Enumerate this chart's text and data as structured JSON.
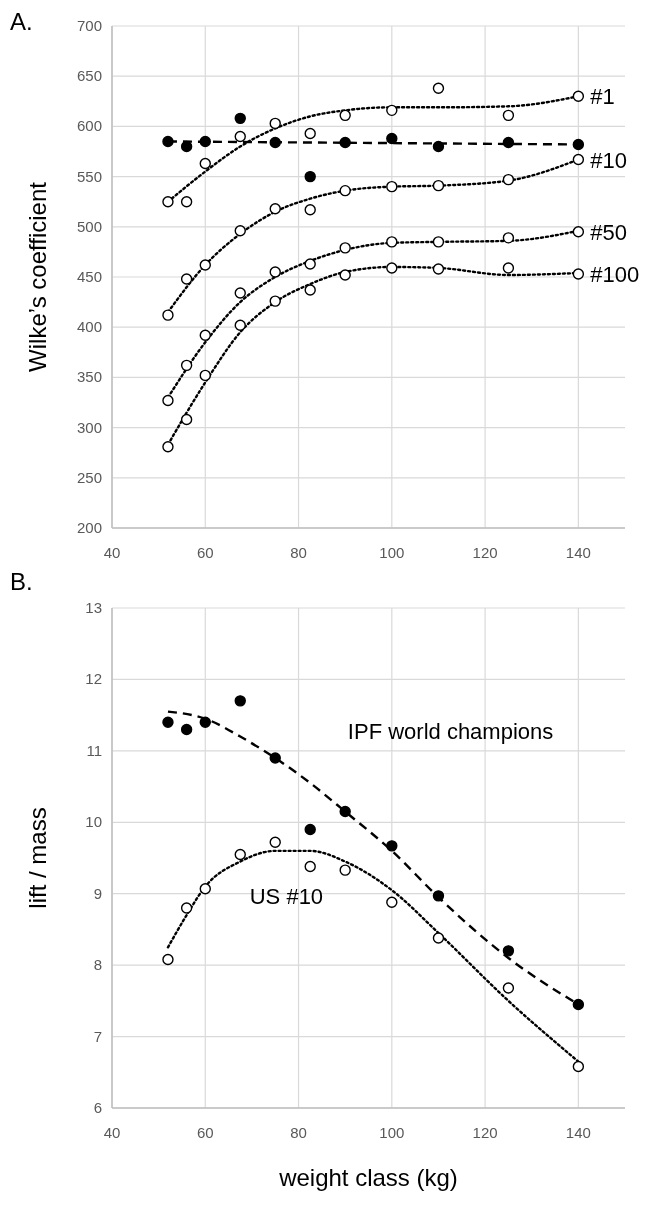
{
  "chart_data": [
    {
      "type": "scatter",
      "title": "A.",
      "ylabel": "Wilke’s coefficient",
      "xlim": [
        40,
        150
      ],
      "xticks": [
        40,
        60,
        80,
        100,
        120,
        140
      ],
      "ylim": [
        200,
        700
      ],
      "yticks": [
        200,
        250,
        300,
        350,
        400,
        450,
        500,
        550,
        600,
        650,
        700
      ],
      "grid": true,
      "x": [
        52,
        56,
        60,
        67.5,
        75,
        82.5,
        90,
        100,
        110,
        125,
        140
      ],
      "series": [
        {
          "type": "line",
          "color": "#000000",
          "marker": "none",
          "line_style": "dashed",
          "x": [
            52,
            140
          ],
          "values": [
            585,
            582
          ]
        },
        {
          "type": "line",
          "color": "#000000",
          "marker": "none",
          "line_style": "dotted",
          "x": [
            52,
            60,
            67.5,
            75,
            82.5,
            90,
            100,
            110,
            125,
            140
          ],
          "values": [
            525,
            555,
            580,
            598,
            610,
            616,
            619,
            619,
            620,
            630
          ]
        },
        {
          "type": "line",
          "color": "#000000",
          "marker": "none",
          "line_style": "dotted",
          "x": [
            52,
            60,
            67.5,
            75,
            82.5,
            90,
            100,
            110,
            125,
            140
          ],
          "values": [
            415,
            462,
            493,
            515,
            528,
            536,
            540,
            541,
            546,
            567
          ]
        },
        {
          "type": "line",
          "color": "#000000",
          "marker": "none",
          "line_style": "dotted",
          "x": [
            52,
            60,
            67.5,
            75,
            82.5,
            90,
            100,
            110,
            125,
            140
          ],
          "values": [
            330,
            385,
            425,
            450,
            466,
            477,
            484,
            485,
            486,
            496
          ]
        },
        {
          "type": "line",
          "color": "#000000",
          "marker": "none",
          "line_style": "dotted",
          "x": [
            52,
            60,
            67.5,
            75,
            82.5,
            90,
            100,
            110,
            125,
            140
          ],
          "values": [
            283,
            345,
            395,
            425,
            443,
            455,
            460,
            459,
            452,
            454
          ]
        },
        {
          "color": "#000000",
          "marker": "circle",
          "values": [
            585,
            580,
            585,
            608,
            584,
            550,
            584,
            588,
            580,
            584,
            582
          ]
        },
        {
          "name": "#1",
          "color": "#ffffff",
          "marker": "circle",
          "values": [
            525,
            525,
            563,
            590,
            603,
            593,
            611,
            616,
            638,
            611,
            630
          ]
        },
        {
          "name": "#10",
          "color": "#ffffff",
          "marker": "circle",
          "values": [
            412,
            448,
            462,
            496,
            518,
            517,
            536,
            540,
            541,
            547,
            567
          ]
        },
        {
          "name": "#50",
          "color": "#ffffff",
          "marker": "circle",
          "values": [
            327,
            362,
            392,
            434,
            455,
            463,
            479,
            485,
            485,
            489,
            495
          ]
        },
        {
          "name": "#100",
          "color": "#ffffff",
          "marker": "circle",
          "values": [
            281,
            308,
            352,
            402,
            426,
            437,
            452,
            459,
            458,
            459,
            453
          ]
        }
      ]
    },
    {
      "type": "scatter",
      "title": "B.",
      "xlabel": "weight class (kg)",
      "ylabel": "lift / mass",
      "xlim": [
        40,
        150
      ],
      "xticks": [
        40,
        60,
        80,
        100,
        120,
        140
      ],
      "ylim": [
        6,
        13
      ],
      "yticks": [
        6,
        7,
        8,
        9,
        10,
        11,
        12,
        13
      ],
      "grid": true,
      "annotations": [
        "IPF world champions",
        "US #10"
      ],
      "x": [
        52,
        56,
        60,
        67.5,
        75,
        82.5,
        90,
        100,
        110,
        125,
        140
      ],
      "series": [
        {
          "type": "line",
          "color": "#000000",
          "marker": "none",
          "line_style": "dashed",
          "x": [
            52,
            60,
            67.5,
            75,
            82.5,
            90,
            100,
            110,
            125,
            140
          ],
          "values": [
            11.55,
            11.45,
            11.2,
            10.9,
            10.55,
            10.15,
            9.6,
            8.95,
            8.1,
            7.45
          ]
        },
        {
          "type": "line",
          "color": "#000000",
          "marker": "none",
          "line_style": "dotted",
          "x": [
            52,
            56,
            60,
            67.5,
            75,
            82.5,
            90,
            100,
            110,
            125,
            140
          ],
          "values": [
            8.25,
            8.7,
            9.1,
            9.45,
            9.6,
            9.6,
            9.45,
            9.05,
            8.45,
            7.5,
            6.65
          ]
        },
        {
          "color": "#000000",
          "marker": "circle",
          "values": [
            11.4,
            11.3,
            11.4,
            11.7,
            10.9,
            9.9,
            10.15,
            9.67,
            8.97,
            8.2,
            7.45
          ]
        },
        {
          "color": "#ffffff",
          "marker": "circle",
          "values": [
            8.08,
            8.8,
            9.07,
            9.55,
            9.72,
            9.38,
            9.33,
            8.88,
            8.38,
            7.68,
            6.58
          ]
        }
      ]
    }
  ]
}
